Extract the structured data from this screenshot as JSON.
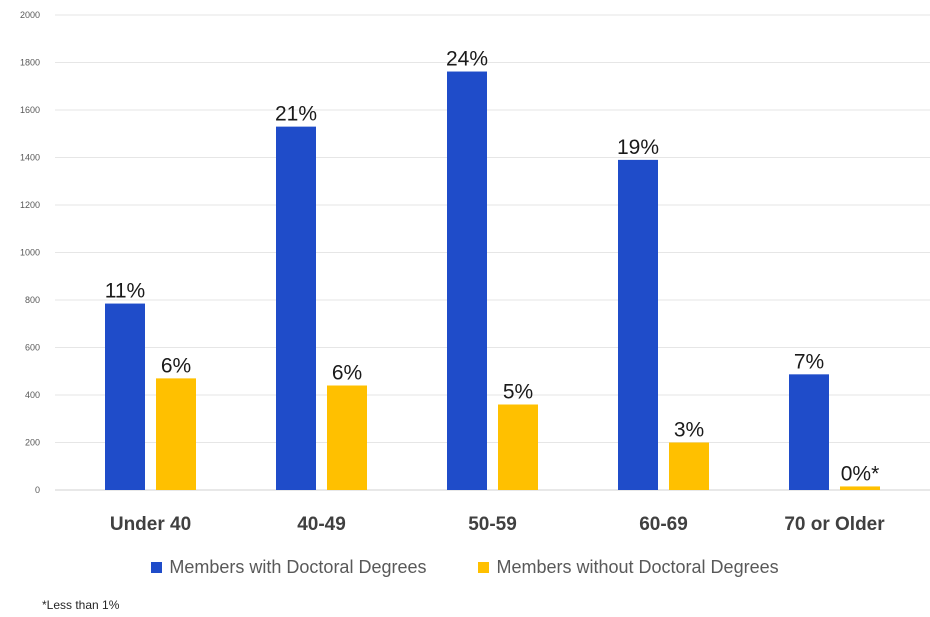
{
  "chart_data": {
    "type": "bar",
    "categories": [
      "Under 40",
      "40-49",
      "50-59",
      "60-69",
      "70 or Older"
    ],
    "series": [
      {
        "name": "Members with Doctoral Degrees",
        "color": "#1F4CC9",
        "values": [
          785,
          1530,
          1762,
          1390,
          487
        ],
        "labels": [
          "11%",
          "21%",
          "24%",
          "19%",
          "7%"
        ]
      },
      {
        "name": "Members without Doctoral Degrees",
        "color": "#FFC000",
        "values": [
          470,
          440,
          360,
          200,
          15
        ],
        "labels": [
          "6%",
          "6%",
          "5%",
          "3%",
          "0%*"
        ]
      }
    ],
    "yticks": [
      "0",
      "200",
      "400",
      "600",
      "800",
      "1000",
      "1200",
      "1400",
      "1600",
      "1800",
      "2000"
    ],
    "ylim": [
      0,
      2000
    ],
    "grid": true,
    "legend_position": "bottom"
  },
  "footnote": "*Less than 1%"
}
